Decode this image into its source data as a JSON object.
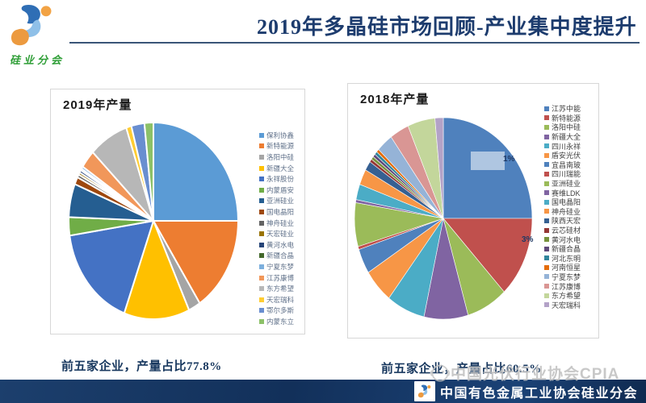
{
  "header": {
    "title": "2019年多晶硅市场回顾-产业集中度提升",
    "logo_text": "硅业分会"
  },
  "charts": {
    "left": {
      "panel_title": "2019年产量",
      "caption": "前五家企业，产量占比77.8%"
    },
    "right": {
      "panel_title": "2018年产量",
      "caption": "前五家企业，产量占比60.5%"
    }
  },
  "chart_data": [
    {
      "type": "pie",
      "title": "2019年产量",
      "legend_position": "right",
      "start_angle_deg": 0,
      "direction": "clockwise",
      "labels": [
        "保利协鑫",
        "新特能源",
        "洛阳中硅",
        "新疆大全",
        "永祥股份",
        "内蒙盾安",
        "亚洲硅业",
        "国电晶阳",
        "神舟硅业",
        "天宏硅业",
        "黄河水电",
        "新疆合晶",
        "宁夏东梦",
        "江苏康博",
        "东方希望",
        "天宏瑞科",
        "鄂尔多斯",
        "内蒙东立"
      ],
      "values": [
        25,
        15.8,
        2.3,
        12.5,
        17,
        3,
        5.5,
        1.2,
        0.5,
        0.4,
        0.4,
        0.3,
        0.4,
        3,
        7.5,
        1,
        2.5,
        1.7
      ],
      "unit": "percent_share_estimated",
      "colors": [
        "#5B9BD5",
        "#ED7D31",
        "#A5A5A5",
        "#FFC000",
        "#4472C4",
        "#70AD47",
        "#255E91",
        "#9E480E",
        "#636363",
        "#997300",
        "#264478",
        "#43682B",
        "#7CAFDD",
        "#F1975A",
        "#B7B7B7",
        "#FFCD33",
        "#698ED0",
        "#8CC168"
      ],
      "annotations": [],
      "note": "前五家企业，产量占比77.8%"
    },
    {
      "type": "pie",
      "title": "2018年产量",
      "legend_position": "right",
      "start_angle_deg": 0,
      "direction": "clockwise",
      "labels": [
        "江苏中能",
        "新特能源",
        "洛阳中硅",
        "新疆大全",
        "四川永祥",
        "盾安光伏",
        "宜昌南玻",
        "四川瑞能",
        "亚洲硅业",
        "赛维LDK",
        "国电晶阳",
        "神舟硅业",
        "陕西天宏",
        "云芯硅材",
        "黄河水电",
        "新疆合晶",
        "河北东明",
        "河南恒星",
        "宁夏东梦",
        "江苏康博",
        "东方希望",
        "天宏瑞科"
      ],
      "values": [
        25,
        13,
        7.5,
        8,
        7,
        5.5,
        4,
        0.5,
        7,
        0.5,
        2.5,
        2.5,
        1.5,
        0.5,
        0.5,
        0.5,
        0.5,
        0.5,
        3,
        3.5,
        5,
        1.5
      ],
      "unit": "percent_share_estimated",
      "colors": [
        "#4F81BD",
        "#C0504D",
        "#9BBB59",
        "#8064A2",
        "#4BACC6",
        "#F79646",
        "#4F81BD",
        "#C0504D",
        "#9BBB59",
        "#8064A2",
        "#4BACC6",
        "#F79646",
        "#366092",
        "#953735",
        "#76923C",
        "#5F497A",
        "#31859C",
        "#E46C0A",
        "#95B3D7",
        "#D99694",
        "#C3D69B",
        "#B3A2C7"
      ],
      "annotations": [
        "1%",
        "3%"
      ],
      "note": "前五家企业，产量占比60.5%"
    }
  ],
  "watermark": {
    "text": "中国光伏行业协会CPIA"
  },
  "footer": {
    "text": "中国有色金属工业协会硅业分会"
  },
  "theme": {
    "title_color": "#1d3c6e",
    "caption_color": "#17375e",
    "footer_bg": "#16355f",
    "logo_green": "#2e9e36",
    "logo_blue": "#2f6eb5",
    "logo_lightblue": "#8fc0e8",
    "logo_orange": "#ec9a3f"
  }
}
